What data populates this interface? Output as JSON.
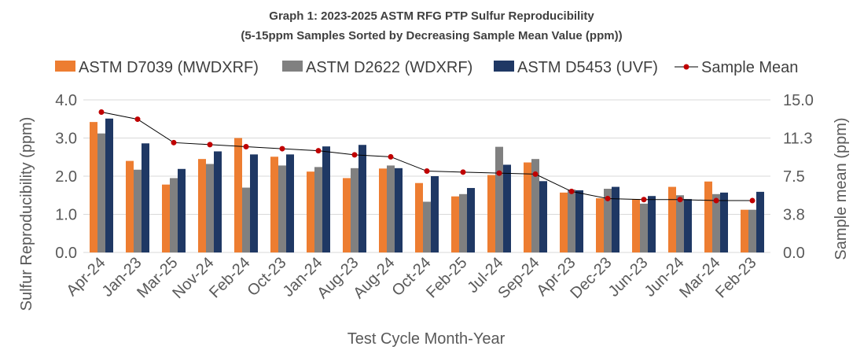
{
  "chart_data": {
    "type": "bar",
    "title": "Graph 1: 2023-2025 ASTM RFG PTP Sulfur Reproducibility",
    "subtitle": "(5-15ppm Samples Sorted by Decreasing Sample Mean Value (ppm))",
    "xlabel": "Test Cycle Month-Year",
    "ylabel": "Sulfur Reproducibility (ppm)",
    "y2label": "Sample mean (ppm)",
    "ylim": [
      0,
      4
    ],
    "y2lim": [
      0,
      15
    ],
    "yticks": [
      "0.0",
      "1.0",
      "2.0",
      "3.0",
      "4.0"
    ],
    "y2ticks": [
      "0.0",
      "3.8",
      "7.5",
      "11.3",
      "15.0"
    ],
    "grid": true,
    "legend_position": "top",
    "categories": [
      "Apr-24",
      "Jan-23",
      "Mar-25",
      "Nov-24",
      "Feb-24",
      "Oct-23",
      "Jan-24",
      "Aug-23",
      "Aug-24",
      "Oct-24",
      "Feb-25",
      "Jul-24",
      "Sep-24",
      "Apr-23",
      "Dec-23",
      "Jun-23",
      "Jun-24",
      "Mar-24",
      "Feb-23"
    ],
    "series": [
      {
        "name": "ASTM D7039 (MWDXRF)",
        "color": "#ED7D31",
        "axis": "left",
        "kind": "bar",
        "values": [
          3.42,
          2.4,
          1.78,
          2.45,
          3.0,
          2.51,
          2.12,
          1.95,
          2.2,
          1.82,
          1.47,
          2.03,
          2.36,
          1.57,
          1.42,
          1.4,
          1.72,
          1.86,
          1.12
        ]
      },
      {
        "name": "ASTM D2622 (WDXRF)",
        "color": "#808080",
        "axis": "left",
        "kind": "bar",
        "values": [
          3.12,
          2.17,
          1.95,
          2.32,
          1.7,
          2.28,
          2.24,
          2.21,
          2.28,
          1.33,
          1.53,
          2.77,
          2.45,
          1.65,
          1.67,
          1.28,
          1.5,
          1.53,
          1.12
        ]
      },
      {
        "name": "ASTM D5453 (UVF)",
        "color": "#1F3864",
        "axis": "left",
        "kind": "bar",
        "values": [
          3.51,
          2.86,
          2.19,
          2.65,
          2.57,
          2.57,
          2.78,
          2.82,
          2.21,
          2.0,
          1.69,
          2.3,
          1.87,
          1.63,
          1.72,
          1.48,
          1.4,
          1.57,
          1.59
        ]
      },
      {
        "name": "Sample Mean",
        "color": "#C00000",
        "line_color": "#000000",
        "axis": "right",
        "kind": "line",
        "values": [
          13.8,
          13.1,
          10.8,
          10.6,
          10.4,
          10.2,
          10.0,
          9.6,
          9.4,
          8.0,
          7.9,
          7.8,
          7.7,
          6.0,
          5.3,
          5.2,
          5.2,
          5.1,
          5.1
        ]
      }
    ]
  }
}
